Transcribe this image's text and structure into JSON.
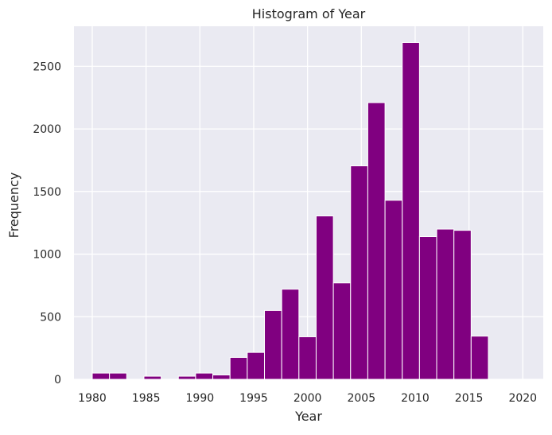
{
  "chart_data": {
    "type": "bar",
    "title": "Histogram of Year",
    "xlabel": "Year",
    "ylabel": "Frequency",
    "xlim": [
      1978.3,
      2021.9
    ],
    "ylim": [
      0,
      2820
    ],
    "x_ticks": [
      1980,
      1985,
      1990,
      1995,
      2000,
      2005,
      2010,
      2015,
      2020
    ],
    "y_ticks": [
      0,
      500,
      1000,
      1500,
      2000,
      2500
    ],
    "bin_edges": [
      1980.0,
      1981.6,
      1983.2,
      1984.8,
      1986.4,
      1988.0,
      1989.6,
      1991.2,
      1992.8,
      1994.4,
      1996.0,
      1997.6,
      1999.2,
      2000.8,
      2002.4,
      2004.0,
      2005.6,
      2007.2,
      2008.8,
      2010.4,
      2012.0,
      2013.6,
      2015.2,
      2016.8,
      2018.4,
      2020.0
    ],
    "values": [
      50,
      50,
      0,
      25,
      0,
      25,
      50,
      35,
      175,
      215,
      550,
      720,
      340,
      1305,
      770,
      1705,
      2210,
      1430,
      2690,
      1140,
      1200,
      1190,
      345,
      0,
      0
    ],
    "bar_color": "#800080",
    "background_color": "#EAEAF2",
    "grid_color": "#FFFFFF",
    "grid": true
  }
}
